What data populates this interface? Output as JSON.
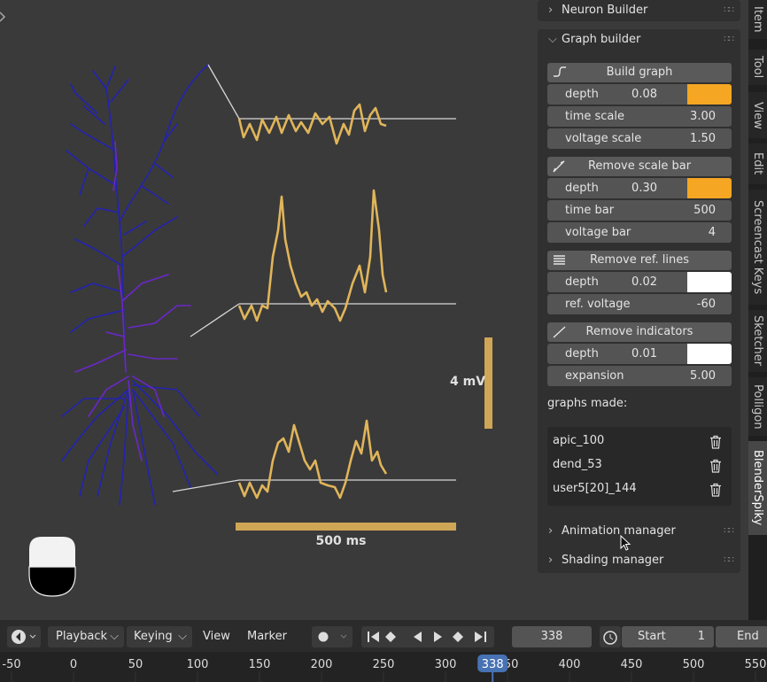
{
  "viewport": {
    "voltage_scale_label": "4 mV",
    "time_scale_label": "500 ms"
  },
  "sidebar": {
    "neuron_builder": "Neuron Builder",
    "graph_builder": "Graph builder",
    "groups": [
      {
        "button": "Build graph",
        "rows": [
          {
            "label": "depth",
            "value": "0.08"
          },
          {
            "label": "time scale",
            "value": "3.00"
          },
          {
            "label": "voltage scale",
            "value": "1.50"
          }
        ]
      },
      {
        "button": "Remove scale bar",
        "rows": [
          {
            "label": "depth",
            "value": "0.30"
          },
          {
            "label": "time bar",
            "value": "500"
          },
          {
            "label": "voltage bar",
            "value": "4"
          }
        ]
      },
      {
        "button": "Remove ref. lines",
        "rows": [
          {
            "label": "depth",
            "value": "0.02"
          },
          {
            "label": "ref. voltage",
            "value": "-60"
          }
        ]
      },
      {
        "button": "Remove indicators",
        "rows": [
          {
            "label": "depth",
            "value": "0.01"
          },
          {
            "label": "expansion",
            "value": "5.00"
          }
        ]
      }
    ],
    "graphs_made_label": "graphs made:",
    "graphs": [
      "apic_100",
      "dend_53",
      "user5[20]_144"
    ],
    "animation_manager": "Animation manager",
    "shading_manager": "Shading manager"
  },
  "tabs": [
    "Item",
    "Tool",
    "View",
    "Edit",
    "Screencast Keys",
    "Sketcher",
    "Polligon",
    "BlenderSpiky"
  ],
  "timeline": {
    "menus": [
      "Playback",
      "Keying",
      "View",
      "Marker"
    ],
    "current_frame": 338,
    "start_label": "Start",
    "start_frame": 1,
    "end_label": "End",
    "ruler": [
      -50,
      0,
      50,
      100,
      150,
      200,
      250,
      300,
      350,
      400,
      450,
      500,
      550
    ]
  }
}
